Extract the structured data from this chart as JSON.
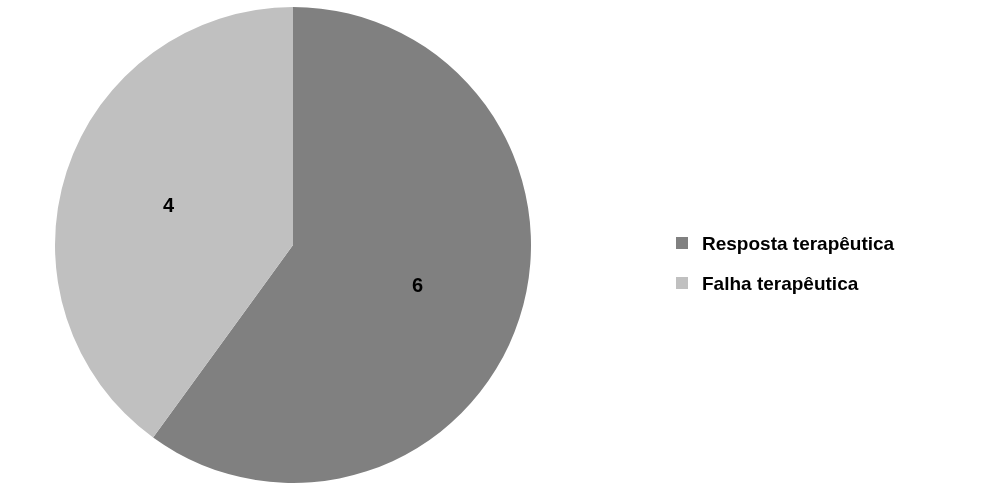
{
  "chart_data": {
    "type": "pie",
    "categories": [
      "Resposta terapêutica",
      "Falha terapêutica"
    ],
    "values": [
      6,
      4
    ],
    "colors": [
      "#808080",
      "#c0c0c0"
    ],
    "data_labels": true,
    "legend": "right"
  }
}
